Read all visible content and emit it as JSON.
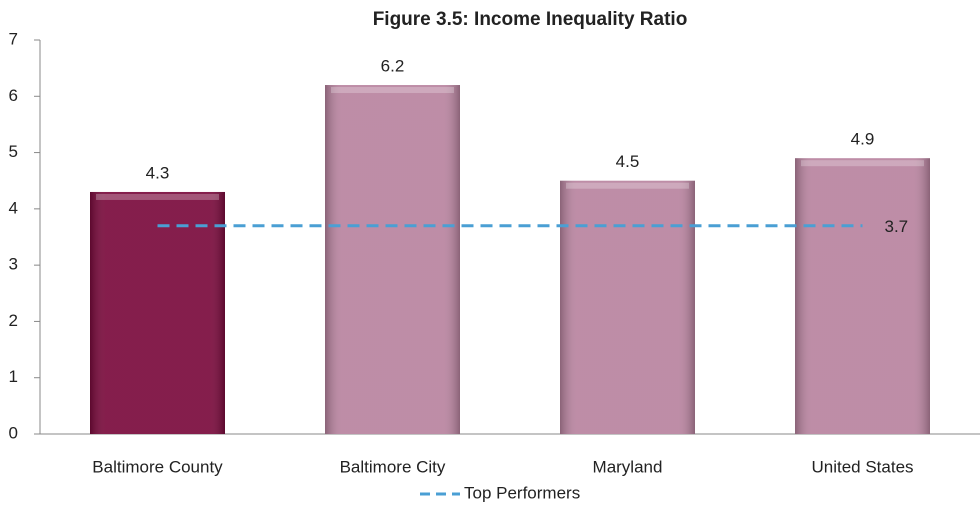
{
  "chart_data": {
    "type": "bar",
    "title": "Figure 3.5: Income Inequality Ratio",
    "categories": [
      "Baltimore County",
      "Baltimore City",
      "Maryland",
      "United States"
    ],
    "values": [
      4.3,
      6.2,
      4.5,
      4.9
    ],
    "colors": [
      "#7a0a3c",
      "#b8839f",
      "#b8839f",
      "#b8839f"
    ],
    "lines": [
      {
        "name": "Top Performers",
        "color": "#4a9fd4",
        "dashed": true,
        "values": [
          3.7,
          3.7,
          3.7,
          3.7
        ]
      }
    ],
    "ylim": [
      0,
      7
    ],
    "yticks": [
      0,
      1,
      2,
      3,
      4,
      5,
      6,
      7
    ],
    "grid": false,
    "legend": "bottom"
  }
}
